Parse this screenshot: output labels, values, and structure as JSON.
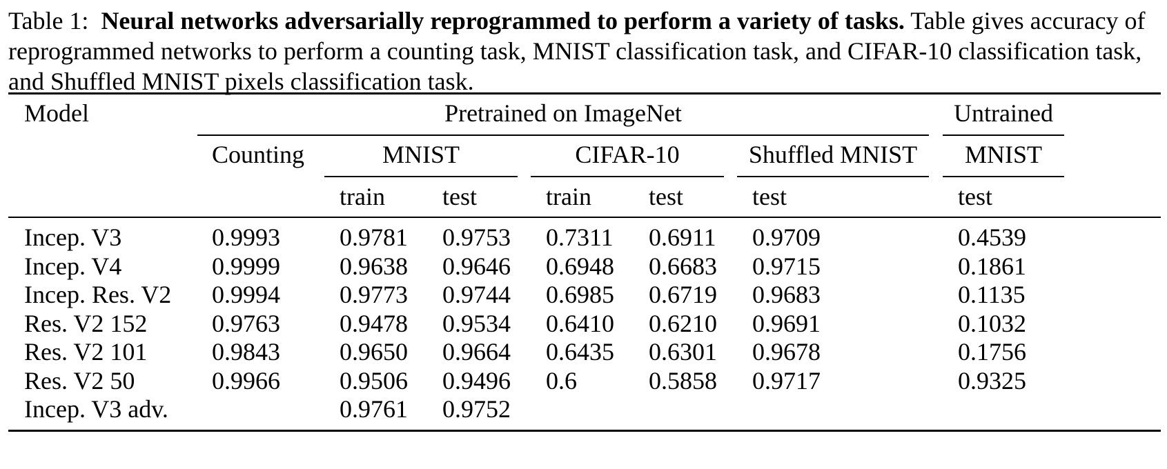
{
  "caption": {
    "label": "Table 1:",
    "bold": "Neural networks adversarially reprogrammed to perform a variety of tasks.",
    "rest": "Table gives accuracy of reprogrammed networks to perform a counting task, MNIST classification task, and CIFAR-10 classification task, and Shuffled MNIST pixels classification task."
  },
  "header": {
    "model": "Model",
    "pretrained": "Pretrained on ImageNet",
    "untrained": "Untrained",
    "counting": "Counting",
    "mnist": "MNIST",
    "cifar": "CIFAR-10",
    "shuffled": "Shuffled MNIST",
    "untrained_mnist": "MNIST",
    "train1": "train",
    "test1": "test",
    "train2": "train",
    "test2": "test",
    "test3": "test",
    "test4": "test"
  },
  "rows": [
    [
      "Incep. V3",
      "0.9993",
      "0.9781",
      "0.9753",
      "0.7311",
      "0.6911",
      "0.9709",
      "0.4539"
    ],
    [
      "Incep. V4",
      "0.9999",
      "0.9638",
      "0.9646",
      "0.6948",
      "0.6683",
      "0.9715",
      "0.1861"
    ],
    [
      "Incep. Res. V2",
      "0.9994",
      "0.9773",
      "0.9744",
      "0.6985",
      "0.6719",
      "0.9683",
      "0.1135"
    ],
    [
      "Res. V2 152",
      "0.9763",
      "0.9478",
      "0.9534",
      "0.6410",
      "0.6210",
      "0.9691",
      "0.1032"
    ],
    [
      "Res. V2 101",
      "0.9843",
      "0.9650",
      "0.9664",
      "0.6435",
      "0.6301",
      "0.9678",
      "0.1756"
    ],
    [
      "Res. V2 50",
      "0.9966",
      "0.9506",
      "0.9496",
      "0.6",
      "0.5858",
      "0.9717",
      "0.9325"
    ],
    [
      "Incep. V3 adv.",
      "",
      "0.9761",
      "0.9752",
      "",
      "",
      "",
      ""
    ]
  ]
}
